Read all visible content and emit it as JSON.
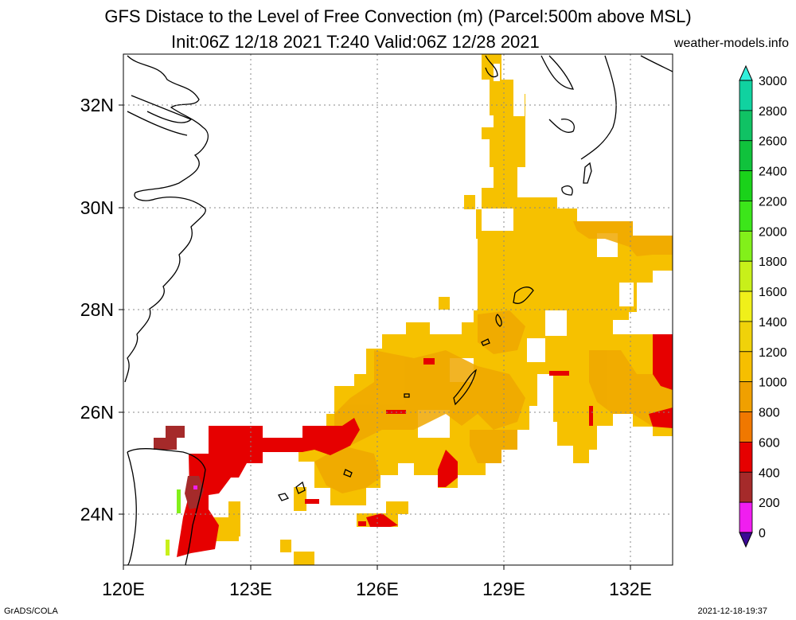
{
  "title": {
    "line1": "GFS Distace to the Level of Free Convection (m) (Parcel:500m above MSL)",
    "line2": "Init:06Z 12/18 2021 T:240 Valid:06Z 12/28 2021",
    "site": "weather-models.info"
  },
  "footer": {
    "left": "GrADS/COLA",
    "right": "2021-12-18-19:37"
  },
  "map": {
    "lon_range": [
      120,
      133
    ],
    "lat_range": [
      23,
      33
    ],
    "lon_ticks": [
      "120E",
      "123E",
      "126E",
      "129E",
      "132E"
    ],
    "lat_ticks": [
      "32N",
      "30N",
      "28N",
      "26N",
      "24N"
    ],
    "grid": "dotted"
  },
  "colorbar": {
    "labels": [
      "3000",
      "2800",
      "2600",
      "2400",
      "2200",
      "2000",
      "1800",
      "1600",
      "1400",
      "1200",
      "1000",
      "800",
      "600",
      "400",
      "200",
      "0"
    ],
    "colors": [
      "#10e6e6",
      "#10d2a0",
      "#10c264",
      "#10c23c",
      "#1ad21a",
      "#3ce61a",
      "#82f01a",
      "#c8f01a",
      "#f0f01a",
      "#f0d20a",
      "#f6bf00",
      "#f0a000",
      "#f07800",
      "#e60000",
      "#a52a2a",
      "#f01ef0",
      "#3c0a96"
    ],
    "arrow_top_color": "#32f0dc",
    "arrow_bottom_color": "#3c0a96"
  },
  "field": {
    "description_colors": {
      "main": "#f6c100",
      "mid": "#f0a800",
      "low": "#f07800",
      "red": "#e60000",
      "brown": "#a52a2a",
      "magenta": "#f01ef0"
    }
  }
}
